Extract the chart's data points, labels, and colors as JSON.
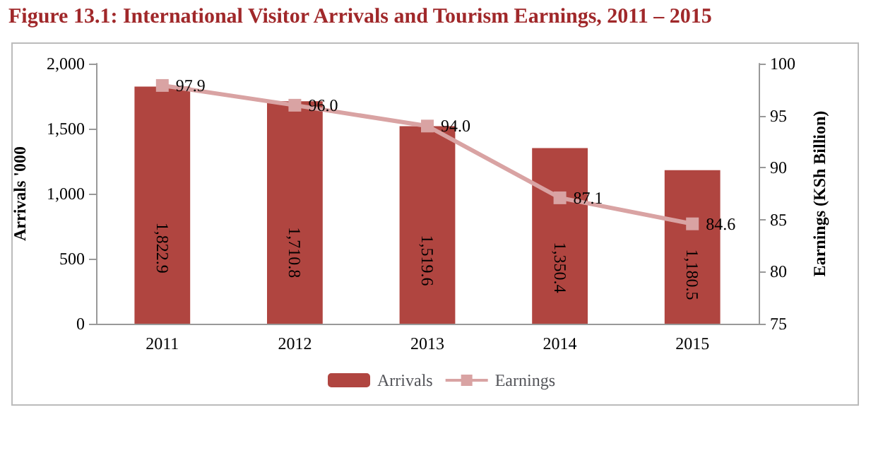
{
  "chart_data": {
    "type": "bar",
    "title": "Figure 13.1: International Visitor Arrivals and Tourism Earnings, 2011 – 2015",
    "ylabel": "Arrivals '000",
    "y2label": "Earnings (KSh Billion)",
    "categories": [
      "2011",
      "2012",
      "2013",
      "2014",
      "2015"
    ],
    "series": [
      {
        "name": "Arrivals",
        "color": "#b04540",
        "values": [
          1822.9,
          1710.8,
          1519.6,
          1350.4,
          1180.5
        ],
        "value_labels": [
          "1,822.9",
          "1,710.8",
          "1,519.6",
          "1,350.4",
          "1,180.5"
        ]
      },
      {
        "name": "Earnings",
        "type": "line",
        "axis": "y2",
        "color": "#d9a3a3",
        "marker": "square",
        "values": [
          97.9,
          96.0,
          94.0,
          87.1,
          84.6
        ],
        "value_labels": [
          "97.9",
          "96.0",
          "94.0",
          "87.1",
          "84.6"
        ]
      }
    ],
    "ylim": [
      0,
      2000
    ],
    "yticks": [
      0,
      500,
      {
        "value": 1000,
        "label": "1,000"
      },
      {
        "value": 1500,
        "label": "1,500"
      },
      {
        "value": 2000,
        "label": "2,000"
      }
    ],
    "y2lim": [
      75,
      100
    ],
    "y2ticks": [
      75,
      80,
      85,
      90,
      95,
      100
    ],
    "grid": false,
    "legend": "bottom"
  }
}
